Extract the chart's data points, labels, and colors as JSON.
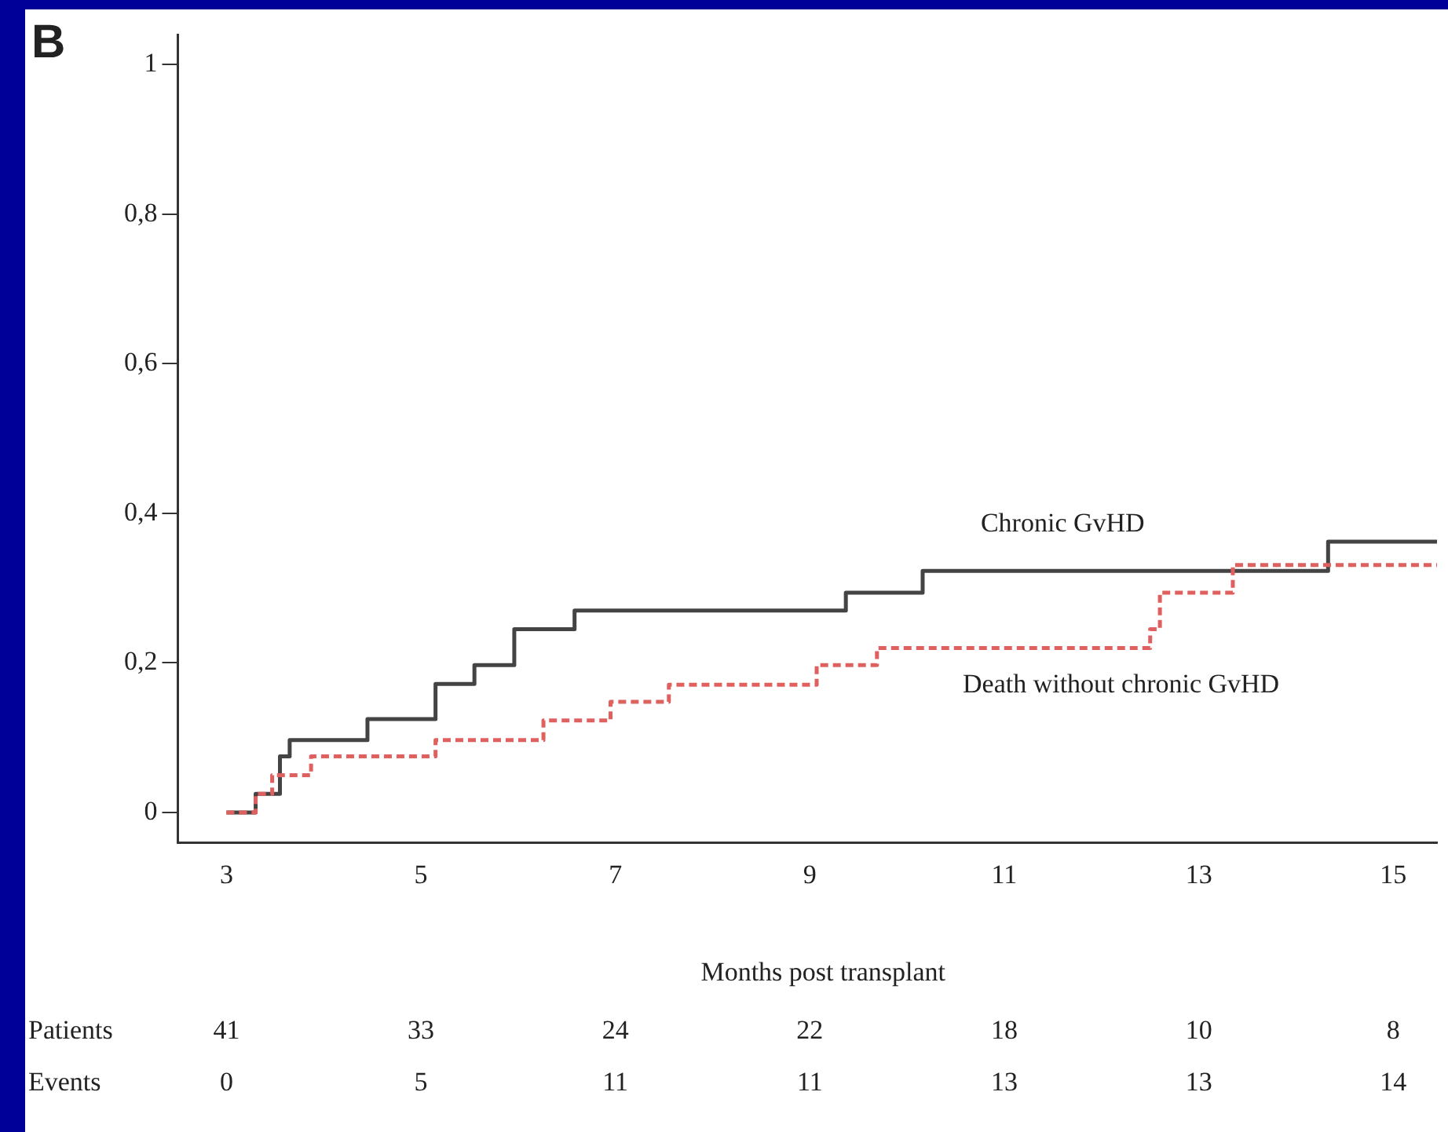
{
  "chart_data": {
    "type": "step",
    "title": "B",
    "xlabel": "Months post transplant",
    "xlim": [
      2.5,
      15.45
    ],
    "ylim": [
      -0.04,
      1.04
    ],
    "xticks": [
      3,
      5,
      7,
      9,
      11,
      13,
      15
    ],
    "yticks": [
      0,
      {
        "value": 0.2,
        "label": "0,2"
      },
      {
        "value": 0.4,
        "label": "0,4"
      },
      {
        "value": 0.6,
        "label": "0,6"
      },
      {
        "value": 0.8,
        "label": "0,8"
      },
      1
    ],
    "grid": false,
    "legend": false,
    "series": [
      {
        "name": "Chronic GvHD",
        "color": "#444444",
        "line_style": "solid",
        "x": [
          3.0,
          3.3,
          3.55,
          3.65,
          4.45,
          5.15,
          5.55,
          5.96,
          6.58,
          9.37,
          10.16,
          14.33,
          15.45
        ],
        "values": [
          0,
          0.025,
          0.075,
          0.097,
          0.125,
          0.172,
          0.197,
          0.245,
          0.27,
          0.294,
          0.323,
          0.362,
          0.362
        ]
      },
      {
        "name": "Death without chronic GvHD",
        "color": "#e06060",
        "line_style": "dashed",
        "x": [
          3.0,
          3.3,
          3.47,
          3.87,
          5.15,
          6.26,
          6.95,
          7.55,
          9.07,
          9.69,
          12.5,
          12.6,
          13.35,
          15.45
        ],
        "values": [
          0,
          0.025,
          0.05,
          0.075,
          0.097,
          0.123,
          0.148,
          0.171,
          0.197,
          0.22,
          0.245,
          0.294,
          0.331,
          0.331
        ]
      }
    ],
    "annotations": [
      "Patients",
      "41",
      "33",
      "24",
      "22",
      "18",
      "10",
      "8",
      "Events",
      "0",
      "5",
      "11",
      "11",
      "13",
      "13",
      "14"
    ]
  }
}
